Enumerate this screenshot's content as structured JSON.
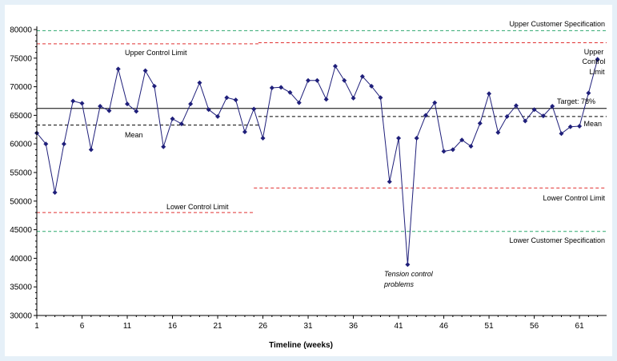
{
  "chart_data": {
    "type": "line",
    "title": "",
    "xlabel": "Timeline (weeks)",
    "ylabel": "",
    "xlim": [
      1,
      64
    ],
    "ylim": [
      30000,
      80000
    ],
    "x_ticks": [
      1,
      6,
      11,
      16,
      21,
      26,
      31,
      36,
      41,
      46,
      51,
      56,
      61
    ],
    "y_ticks": [
      30000,
      35000,
      40000,
      45000,
      50000,
      55000,
      60000,
      65000,
      70000,
      75000,
      80000
    ],
    "grid": false,
    "series": [
      {
        "color": "#1f1f7a",
        "marker": "diamond",
        "x": [
          1,
          2,
          3,
          4,
          5,
          6,
          7,
          8,
          9,
          10,
          11,
          12,
          13,
          14,
          15,
          16,
          17,
          18,
          19,
          20,
          21,
          22,
          23,
          24,
          25,
          26,
          27,
          28,
          29,
          30,
          31,
          32,
          33,
          34,
          35,
          36,
          37,
          38,
          39,
          40,
          41,
          42,
          43,
          44,
          45,
          46,
          47,
          48,
          49,
          50,
          51,
          52,
          53,
          54,
          55,
          56,
          57,
          58,
          59,
          60,
          61,
          62,
          63
        ],
        "values": [
          61900,
          60000,
          51500,
          60000,
          67500,
          67100,
          59000,
          66600,
          65800,
          73100,
          67000,
          65700,
          72800,
          70100,
          59500,
          64400,
          63500,
          67000,
          70700,
          66000,
          64800,
          68100,
          67700,
          62100,
          66100,
          61000,
          69800,
          69900,
          69000,
          67200,
          71100,
          71100,
          67800,
          73600,
          71100,
          68000,
          71800,
          70100,
          68100,
          53400,
          61000,
          38900,
          61000,
          65000,
          67200,
          58700,
          59000,
          60700,
          59600,
          63600,
          68800,
          62000,
          64800,
          66700,
          64000,
          66000,
          64900,
          66600,
          61800,
          63000,
          63100,
          68900,
          74800
        ]
      }
    ],
    "reference_lines": [
      {
        "label": "Upper Customer Specification",
        "value": 79800,
        "color": "#2ca86e",
        "style": "dashed"
      },
      {
        "label": "Upper Control Limit",
        "segments": [
          {
            "from": 1,
            "to": 25.5,
            "value": 77500
          },
          {
            "from": 25.5,
            "to": 64,
            "value": 77700
          }
        ],
        "color": "#e03030",
        "style": "dashed"
      },
      {
        "label": "Target: 78%",
        "value": 66200,
        "color": "#000000",
        "style": "solid"
      },
      {
        "label": "Mean",
        "segments": [
          {
            "from": 1,
            "to": 25.5,
            "value": 63300
          },
          {
            "from": 25.5,
            "to": 64,
            "value": 64800
          }
        ],
        "color": "#000000",
        "style": "dashed"
      },
      {
        "label": "Lower Control Limit",
        "segments": [
          {
            "from": 1,
            "to": 25,
            "value": 48000
          },
          {
            "from": 25,
            "to": 64,
            "value": 52300
          }
        ],
        "color": "#e03030",
        "style": "dashed"
      },
      {
        "label": "Lower Customer Specification",
        "value": 44700,
        "color": "#2ca86e",
        "style": "dashed"
      }
    ],
    "annotations": {
      "ucl_left": "Upper Control Limit",
      "mean_left": "Mean",
      "lcl_left": "Lower Control Limit",
      "ucs_right": "Upper Customer Specification",
      "ucl_right_line1": "Upper",
      "ucl_right_line2": "Control",
      "ucl_right_line3": "Limit",
      "target_right": "Target: 78%",
      "mean_right": "Mean",
      "lcl_right": "Lower Control Limit",
      "lcs_right": "Lower Customer Specification",
      "tension_line1": "Tension control",
      "tension_line2": "problems"
    }
  }
}
